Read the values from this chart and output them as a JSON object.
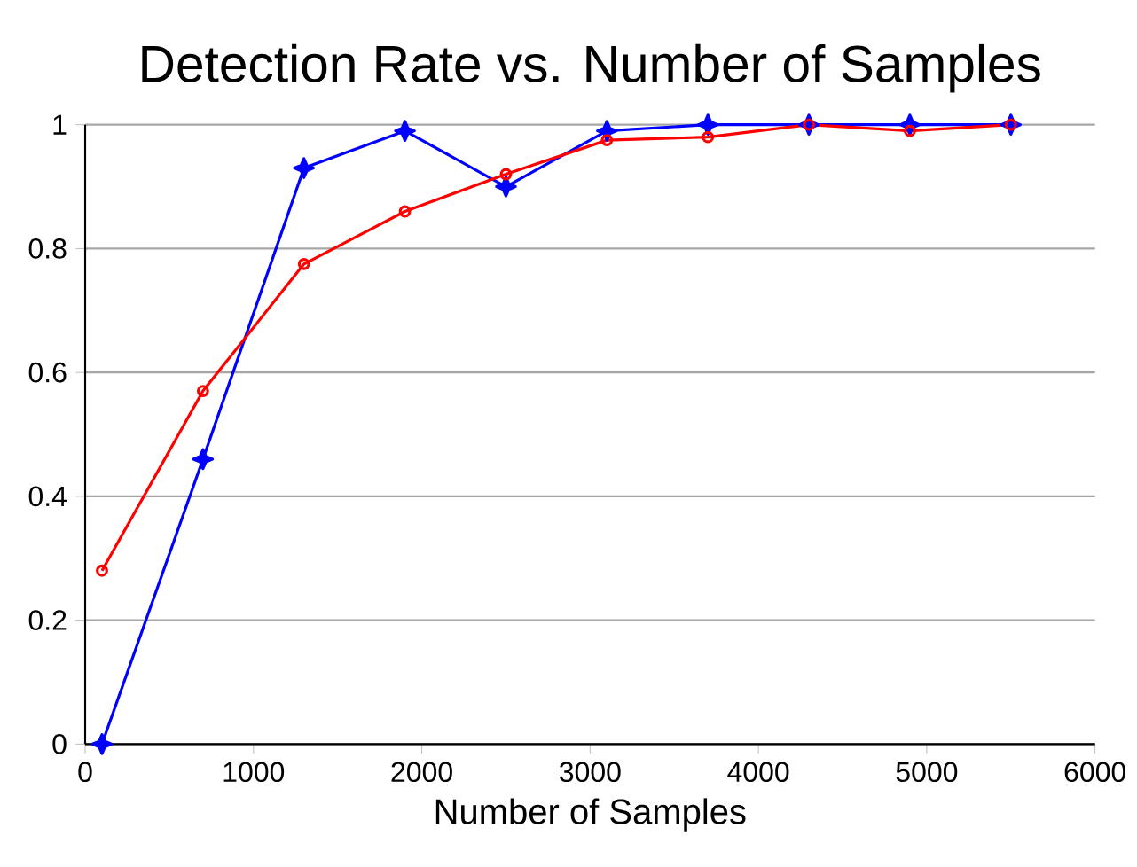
{
  "chart_data": {
    "type": "line",
    "title": "Detection Rate vs. Number of Samples",
    "xlabel": "Number of Samples",
    "x": [
      100,
      700,
      1300,
      1900,
      2500,
      3100,
      3700,
      4300,
      4900,
      5500
    ],
    "series": [
      {
        "color": "#0000ff",
        "marker": "star",
        "values": [
          0,
          0.46,
          0.93,
          0.99,
          0.9,
          0.99,
          1.0,
          1.0,
          1.0,
          1.0
        ]
      },
      {
        "color": "#ff0000",
        "marker": "circle",
        "values": [
          0.28,
          0.57,
          0.775,
          0.86,
          0.92,
          0.975,
          0.98,
          1.0,
          0.99,
          1.0
        ]
      }
    ],
    "xlim": [
      0,
      6000
    ],
    "xticks": [
      0,
      1000,
      2000,
      3000,
      4000,
      5000,
      6000
    ],
    "ylim": [
      0,
      1
    ],
    "yticks": [
      0,
      0.2,
      0.4,
      0.6,
      0.8,
      1
    ],
    "grid": "y",
    "line_style": "solid"
  }
}
